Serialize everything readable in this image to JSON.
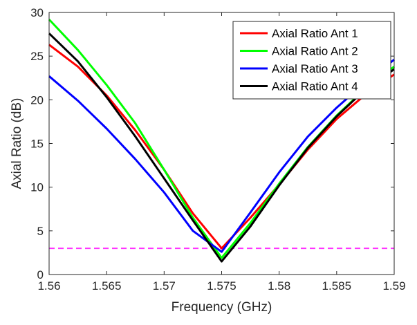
{
  "chart_data": {
    "type": "line",
    "title": "",
    "xlabel": "Frequency (GHz)",
    "ylabel": "Axial Ratio (dB)",
    "xlim": [
      1.56,
      1.59
    ],
    "ylim": [
      0,
      30
    ],
    "xticks": [
      1.56,
      1.565,
      1.57,
      1.575,
      1.58,
      1.585,
      1.59
    ],
    "xtick_labels": [
      "1.56",
      "1.565",
      "1.57",
      "1.575",
      "1.58",
      "1.585",
      "1.59"
    ],
    "yticks": [
      0,
      5,
      10,
      15,
      20,
      25,
      30
    ],
    "ytick_labels": [
      "0",
      "5",
      "10",
      "15",
      "20",
      "25",
      "30"
    ],
    "grid": false,
    "legend_position": "top-right",
    "series": [
      {
        "name": "Axial Ratio Ant 1",
        "color": "#ff0000",
        "x": [
          1.56,
          1.5625,
          1.565,
          1.5675,
          1.57,
          1.5725,
          1.575,
          1.5775,
          1.58,
          1.5825,
          1.585,
          1.5875,
          1.59
        ],
        "y": [
          26.3,
          23.8,
          20.5,
          16.5,
          12.0,
          7.0,
          3.0,
          6.5,
          10.3,
          14.3,
          17.8,
          20.6,
          22.9
        ]
      },
      {
        "name": "Axial Ratio Ant 2",
        "color": "#00ff00",
        "x": [
          1.56,
          1.5625,
          1.565,
          1.5675,
          1.57,
          1.5725,
          1.575,
          1.5775,
          1.58,
          1.5825,
          1.585,
          1.5875,
          1.59
        ],
        "y": [
          29.2,
          25.7,
          21.7,
          17.3,
          12.0,
          6.5,
          1.9,
          5.9,
          10.4,
          14.6,
          18.2,
          21.3,
          23.8
        ]
      },
      {
        "name": "Axial Ratio Ant 3",
        "color": "#0000ff",
        "x": [
          1.56,
          1.5625,
          1.565,
          1.5675,
          1.57,
          1.5725,
          1.575,
          1.5775,
          1.58,
          1.5825,
          1.585,
          1.5875,
          1.59
        ],
        "y": [
          22.7,
          19.9,
          16.7,
          13.2,
          9.4,
          5.0,
          2.6,
          7.1,
          11.7,
          15.8,
          19.1,
          22.0,
          24.6
        ]
      },
      {
        "name": "Axial Ratio Ant 4",
        "color": "#000000",
        "x": [
          1.56,
          1.5625,
          1.565,
          1.5675,
          1.57,
          1.5725,
          1.575,
          1.5775,
          1.58,
          1.5825,
          1.585,
          1.5875,
          1.59
        ],
        "y": [
          27.6,
          24.4,
          20.3,
          15.8,
          11.0,
          6.2,
          1.5,
          5.5,
          10.2,
          14.5,
          18.1,
          21.2,
          23.5
        ]
      }
    ],
    "reference_line": {
      "y": 3,
      "color": "#ff33ff",
      "style": "dashed"
    }
  }
}
